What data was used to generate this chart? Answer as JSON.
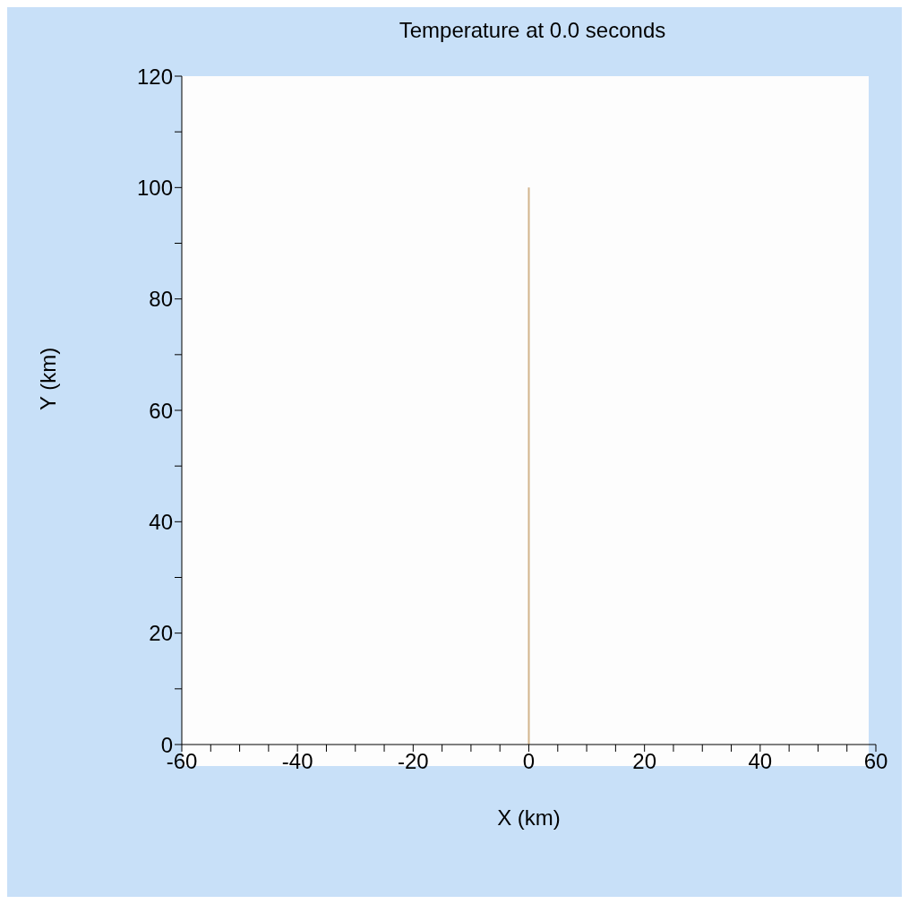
{
  "chart_data": {
    "type": "line",
    "title": "Temperature at  0.0 seconds",
    "xlabel": "X (km)",
    "ylabel": "Y (km)",
    "series": [
      {
        "color": "#d2b48c",
        "x": [
          0,
          0
        ],
        "values": [
          0,
          100
        ]
      }
    ],
    "xlim": [
      -60,
      60
    ],
    "xticks": [
      -60,
      {
        "value": -55,
        "label": null
      },
      {
        "value": -50,
        "label": null
      },
      {
        "value": -45,
        "label": null
      },
      -40,
      {
        "value": -35,
        "label": null
      },
      {
        "value": -30,
        "label": null
      },
      {
        "value": -25,
        "label": null
      },
      -20,
      {
        "value": -15,
        "label": null
      },
      {
        "value": -10,
        "label": null
      },
      {
        "value": -5,
        "label": null
      },
      0,
      {
        "value": 5,
        "label": null
      },
      {
        "value": 10,
        "label": null
      },
      {
        "value": 15,
        "label": null
      },
      20,
      {
        "value": 25,
        "label": null
      },
      {
        "value": 30,
        "label": null
      },
      {
        "value": 35,
        "label": null
      },
      40,
      {
        "value": 45,
        "label": null
      },
      {
        "value": 50,
        "label": null
      },
      {
        "value": 55,
        "label": null
      },
      60
    ],
    "ylim": [
      0,
      120
    ],
    "yticks": [
      0,
      {
        "value": 10,
        "label": null
      },
      20,
      {
        "value": 30,
        "label": null
      },
      40,
      {
        "value": 50,
        "label": null
      },
      60,
      {
        "value": 70,
        "label": null
      },
      80,
      {
        "value": 90,
        "label": null
      },
      100,
      {
        "value": 110,
        "label": null
      },
      120
    ],
    "grid": false,
    "legend": false,
    "marker": "none",
    "line_style": "solid"
  }
}
